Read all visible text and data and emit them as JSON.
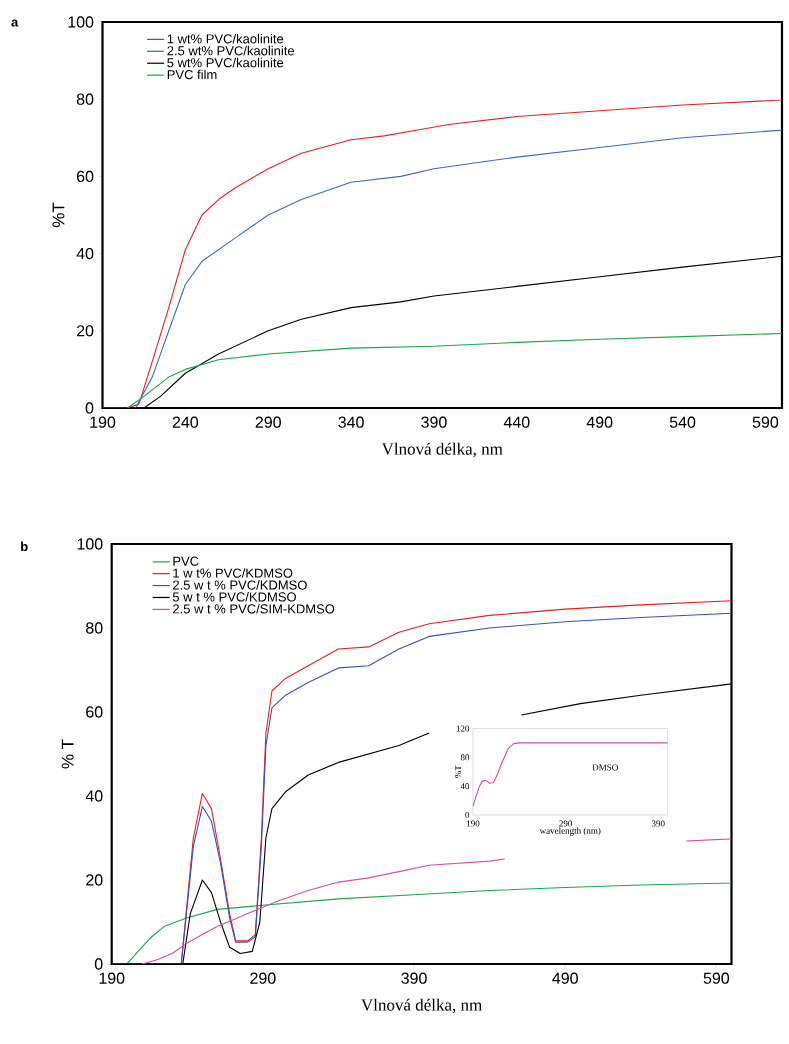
{
  "chart_data": [
    {
      "type": "line",
      "annotations": [
        "a"
      ],
      "xlabel": "Vlnová délka, nm",
      "ylabel": "%T",
      "xlim": [
        190,
        600
      ],
      "ylim": [
        0,
        100
      ],
      "xticks": [
        190,
        240,
        290,
        340,
        390,
        440,
        490,
        540,
        590
      ],
      "yticks": [
        0,
        20,
        40,
        60,
        80,
        100
      ],
      "legend": "top left",
      "marker": "none",
      "line_style": "solid",
      "series": [
        {
          "name": "1 wt% PVC/kaolinite",
          "color": "#e8201f",
          "x": [
            190,
            205,
            212,
            220,
            230,
            240,
            250,
            260,
            270,
            290,
            310,
            340,
            360,
            380,
            400,
            440,
            490,
            540,
            600
          ],
          "values": [
            0,
            0,
            1,
            12,
            26,
            41,
            50,
            54,
            57,
            62,
            66,
            69.5,
            70.5,
            72,
            73.5,
            75.5,
            77,
            78.5,
            79.8
          ]
        },
        {
          "name": "2.5 wt% PVC/kaolinite",
          "color": "#3f68c4",
          "x": [
            190,
            210,
            220,
            230,
            240,
            250,
            270,
            290,
            310,
            340,
            370,
            390,
            440,
            490,
            540,
            600
          ],
          "values": [
            0,
            0,
            8,
            20,
            32,
            38,
            44,
            50,
            54,
            58.5,
            60,
            62,
            65,
            67.5,
            70,
            72
          ]
        },
        {
          "name": "5 wt% PVC/kaolinite",
          "color": "#000000",
          "x": [
            190,
            215,
            225,
            240,
            260,
            290,
            310,
            340,
            370,
            390,
            440,
            490,
            540,
            600
          ],
          "values": [
            0,
            0,
            3,
            9,
            14,
            20,
            23,
            26,
            27.5,
            29,
            31.5,
            34,
            36.5,
            39.3
          ]
        },
        {
          "name": "PVC film",
          "color": "#1aa548",
          "x": [
            205,
            215,
            230,
            240,
            260,
            290,
            340,
            390,
            440,
            490,
            540,
            600
          ],
          "values": [
            0,
            3,
            8,
            10,
            12.5,
            14,
            15.5,
            16,
            17,
            17.8,
            18.5,
            19.3
          ]
        }
      ]
    },
    {
      "type": "line",
      "annotations": [
        "b"
      ],
      "xlabel": "Vlnová délka, nm",
      "ylabel": "% T",
      "xlim": [
        190,
        600
      ],
      "ylim": [
        0,
        100
      ],
      "xticks": [
        190,
        290,
        390,
        490,
        590
      ],
      "yticks": [
        0,
        20,
        40,
        60,
        80,
        100
      ],
      "legend": "top left",
      "marker": "none",
      "line_style": "solid",
      "series": [
        {
          "name": "PVC",
          "color": "#1aa548",
          "x": [
            190,
            200,
            205,
            215,
            225,
            240,
            260,
            290,
            340,
            390,
            440,
            490,
            540,
            600
          ],
          "values": [
            0,
            0,
            2,
            6,
            9,
            11,
            13,
            14,
            15.5,
            16.5,
            17.5,
            18.2,
            18.8,
            19.3
          ]
        },
        {
          "name": "1 w t% PVC/KDMSO",
          "color": "#e8201f",
          "x": [
            190,
            236,
            240,
            244,
            250,
            256,
            262,
            268,
            272,
            280,
            285,
            289,
            292,
            296,
            305,
            320,
            340,
            360,
            380,
            400,
            440,
            490,
            540,
            600
          ],
          "values": [
            0,
            0,
            15,
            30,
            40.6,
            37,
            25,
            12,
            5.5,
            5.5,
            7,
            30,
            55,
            65,
            68,
            71,
            75,
            75.5,
            79,
            81,
            83,
            84.5,
            85.5,
            86.5
          ]
        },
        {
          "name": "2.5 w t % PVC/KDMSO",
          "color": "#3a4fb8",
          "x": [
            190,
            236,
            240,
            244,
            250,
            256,
            262,
            268,
            272,
            280,
            285,
            289,
            292,
            296,
            305,
            320,
            340,
            360,
            380,
            400,
            440,
            490,
            540,
            600
          ],
          "values": [
            0,
            0,
            14,
            28,
            37.5,
            34,
            24,
            11,
            5.2,
            5.2,
            6.5,
            28,
            52,
            61,
            64,
            67,
            70.5,
            71,
            75,
            78,
            80,
            81.5,
            82.5,
            83.5
          ]
        },
        {
          "name": "5 w t % PVC/KDMSO",
          "color": "#000000",
          "x": [
            190,
            237,
            242,
            250,
            256,
            262,
            268,
            275,
            283,
            288,
            292,
            296,
            305,
            320,
            340,
            360,
            380,
            400,
            430,
            461,
            500,
            540,
            600
          ],
          "values": [
            0,
            0,
            12,
            20,
            17,
            10,
            4,
            2.5,
            3,
            10,
            30,
            37,
            41,
            45,
            48,
            50,
            52,
            55,
            null,
            59.3,
            62,
            64,
            66.7
          ]
        },
        {
          "name": "2.5 w t % PVC/SIM-KDMSO",
          "color": "#d4509a",
          "x": [
            210,
            220,
            230,
            240,
            250,
            260,
            270,
            280,
            290,
            300,
            320,
            340,
            360,
            380,
            400,
            440,
            450,
            500,
            570,
            600
          ],
          "values": [
            0,
            1,
            2.5,
            5,
            7,
            9,
            10.5,
            12,
            13.5,
            15,
            17.5,
            19.5,
            20.5,
            22,
            23.5,
            24.5,
            25,
            null,
            29.3,
            29.8
          ]
        }
      ]
    },
    {
      "type": "line",
      "annotations": [
        "DMSO"
      ],
      "xlabel": "wavelength (nm)",
      "ylabel": "%T",
      "xlim": [
        190,
        400
      ],
      "ylim": [
        0,
        120
      ],
      "xticks": [
        190,
        290,
        390
      ],
      "yticks": [
        0,
        40,
        80,
        120
      ],
      "marker": "none",
      "line_style": "solid",
      "series": [
        {
          "color": "#d4509a",
          "x": [
            190,
            193,
            197,
            200,
            204,
            208,
            212,
            216,
            222,
            228,
            234,
            240,
            300,
            400
          ],
          "values": [
            12,
            25,
            40,
            47,
            48,
            44,
            45,
            55,
            75,
            92,
            99,
            100,
            100,
            100
          ]
        }
      ]
    }
  ]
}
